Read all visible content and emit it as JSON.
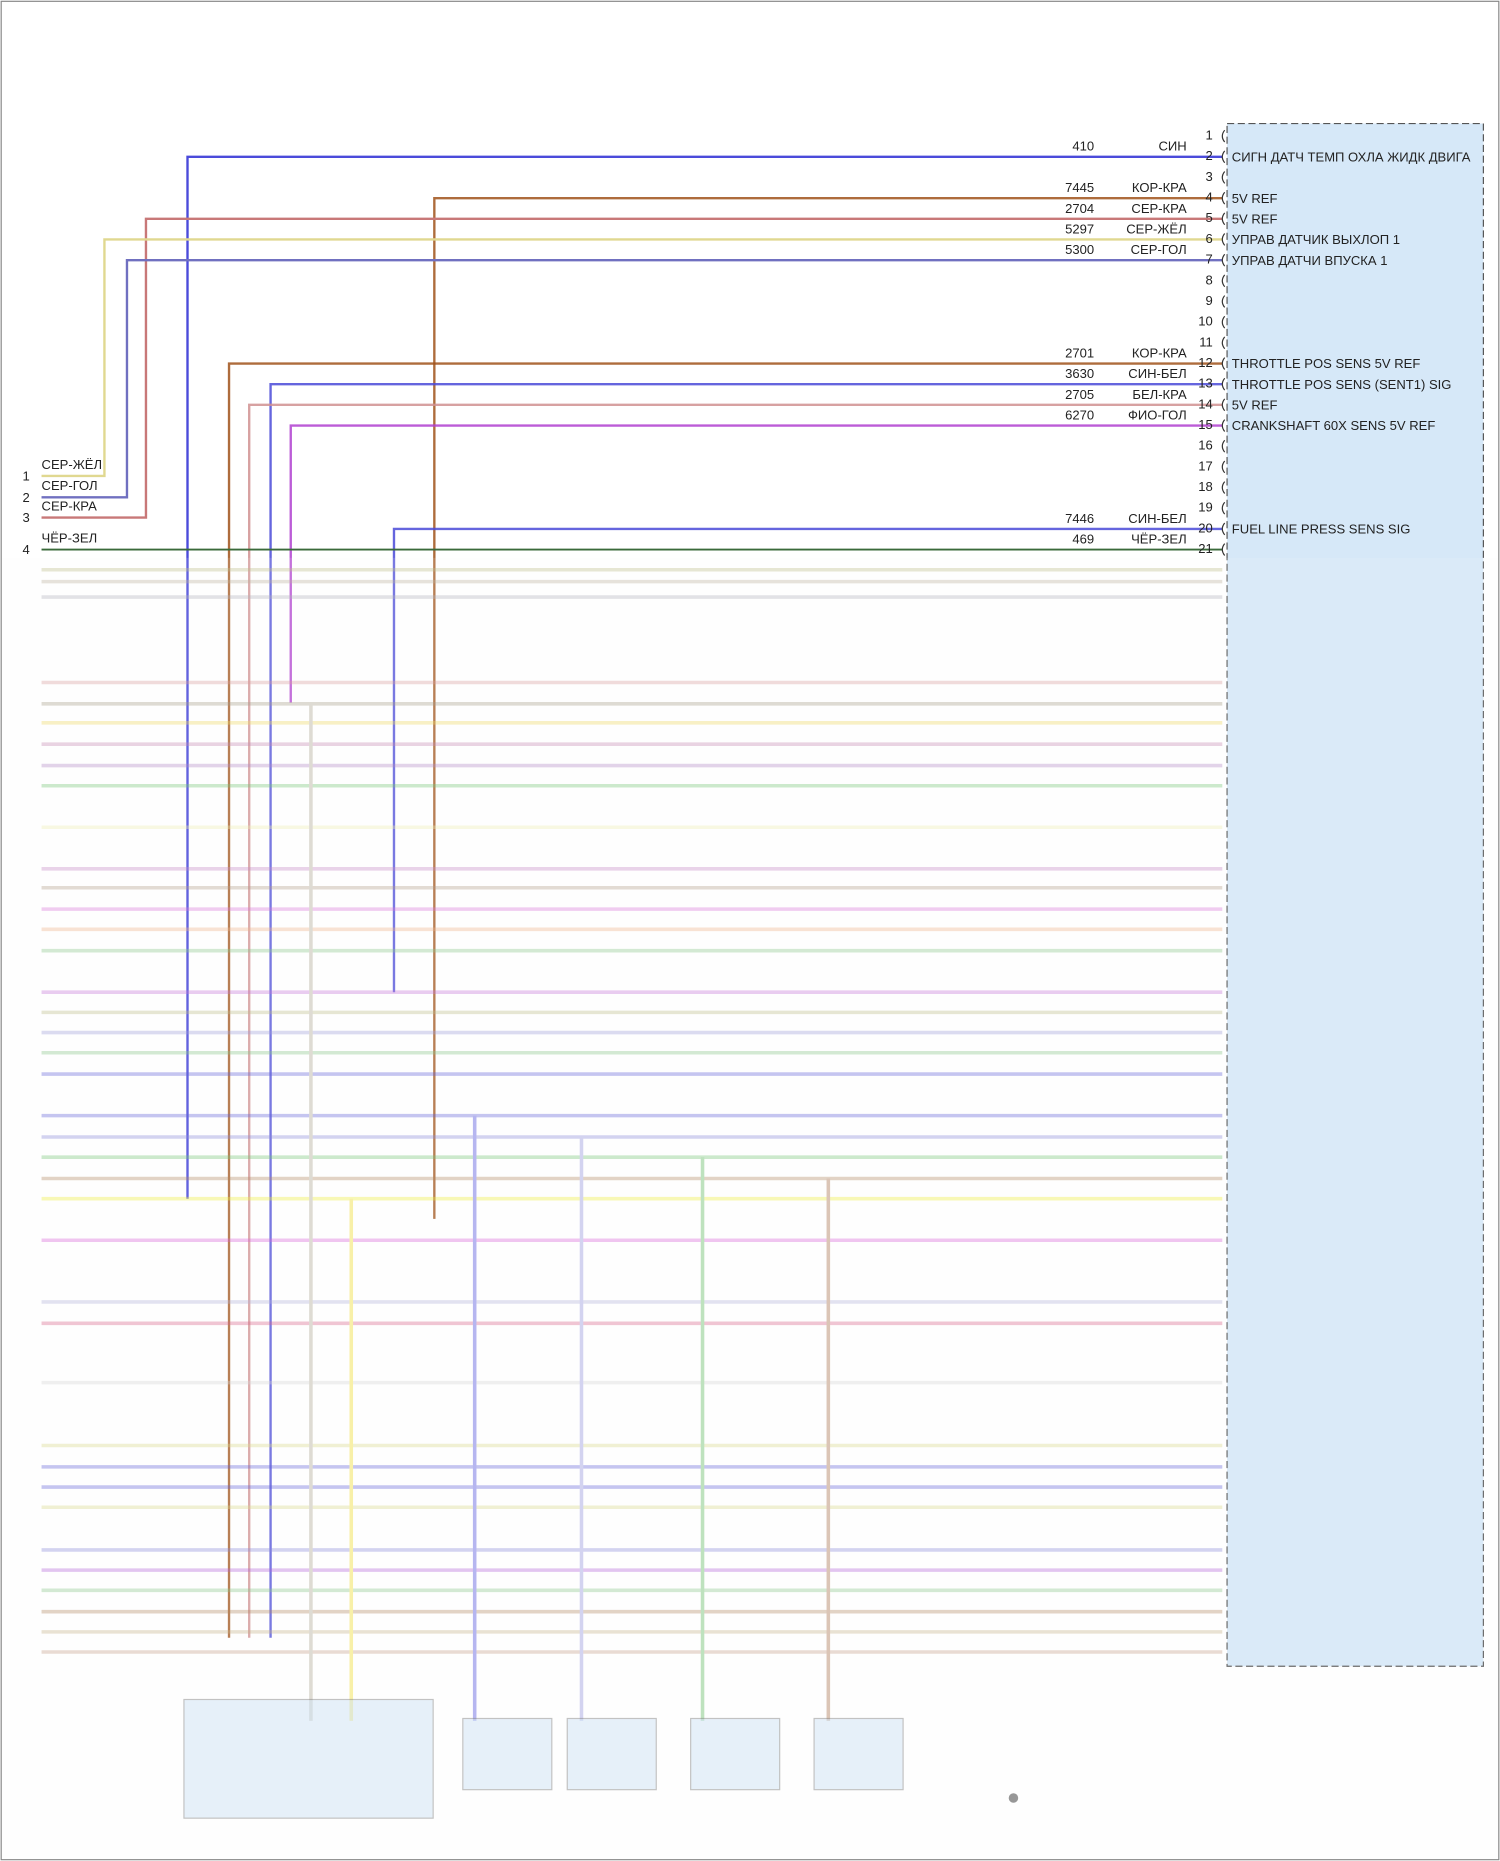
{
  "connector": {
    "pins": [
      {
        "pin": "1"
      },
      {
        "pin": "2",
        "circuit": "410",
        "color": "СИН",
        "label": "СИГН ДАТЧ ТЕМП ОХЛА ЖИДК ДВИГА"
      },
      {
        "pin": "3"
      },
      {
        "pin": "4",
        "circuit": "7445",
        "color": "КОР-КРА",
        "label": "5V REF"
      },
      {
        "pin": "5",
        "circuit": "2704",
        "color": "СЕР-КРА",
        "label": "5V REF"
      },
      {
        "pin": "6",
        "circuit": "5297",
        "color": "СЕР-ЖЁЛ",
        "label": "УПРАВ ДАТЧИК ВЫХЛОП 1"
      },
      {
        "pin": "7",
        "circuit": "5300",
        "color": "СЕР-ГОЛ",
        "label": "УПРАВ ДАТЧИ ВПУСКА 1"
      },
      {
        "pin": "8"
      },
      {
        "pin": "9"
      },
      {
        "pin": "10"
      },
      {
        "pin": "11"
      },
      {
        "pin": "12",
        "circuit": "2701",
        "color": "КОР-КРА",
        "label": "THROTTLE POS SENS 5V REF"
      },
      {
        "pin": "13",
        "circuit": "3630",
        "color": "СИН-БЕЛ",
        "label": "THROTTLE POS SENS (SENT1) SIG"
      },
      {
        "pin": "14",
        "circuit": "2705",
        "color": "БЕЛ-КРА",
        "label": "5V REF"
      },
      {
        "pin": "15",
        "circuit": "6270",
        "color": "ФИО-ГОЛ",
        "label": "CRANKSHAFT 60X SENS 5V REF"
      },
      {
        "pin": "16"
      },
      {
        "pin": "17"
      },
      {
        "pin": "18"
      },
      {
        "pin": "19"
      },
      {
        "pin": "20",
        "circuit": "7446",
        "color": "СИН-БЕЛ",
        "label": "FUEL LINE PRESS SENS SIG"
      },
      {
        "pin": "21",
        "circuit": "469",
        "color": "ЧЁР-ЗЕЛ"
      }
    ]
  },
  "left_connector": {
    "pins": [
      {
        "pin": "1",
        "color": "СЕР-ЖЁЛ"
      },
      {
        "pin": "2",
        "color": "СЕР-ГОЛ"
      },
      {
        "pin": "3",
        "color": "СЕР-КРА"
      },
      {
        "pin": "4",
        "color": "ЧЁР-ЗЕЛ"
      }
    ]
  }
}
